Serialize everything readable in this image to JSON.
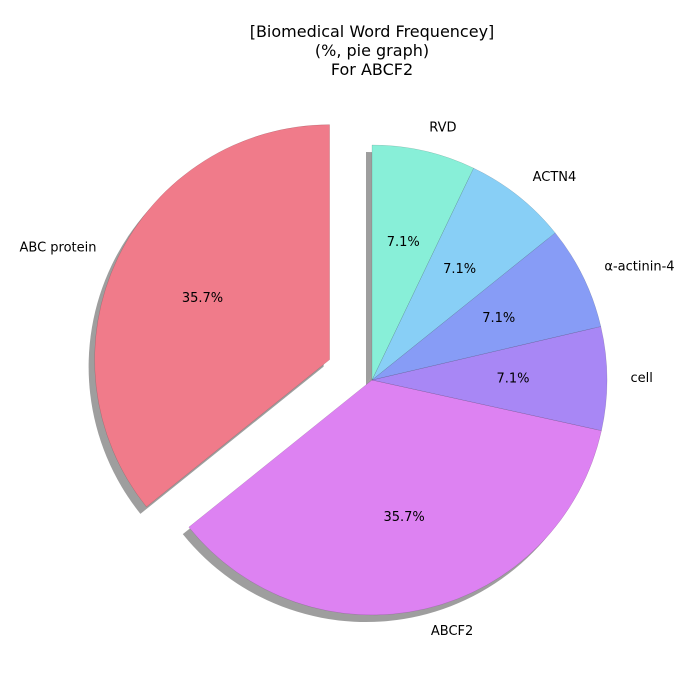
{
  "chart_data": {
    "type": "pie",
    "title_lines": [
      "[Biomedical Word Frequencey]",
      "(%, pie graph)",
      "For ABCF2"
    ],
    "slices": [
      {
        "label": "ABC protein",
        "value": 35.7,
        "pct_label": "35.7%",
        "color": "#f07b8a",
        "exploded": true
      },
      {
        "label": "ABCF2",
        "value": 35.7,
        "pct_label": "35.7%",
        "color": "#dd82f2",
        "exploded": false
      },
      {
        "label": "cell",
        "value": 7.1,
        "pct_label": "7.1%",
        "color": "#a887f5",
        "exploded": false
      },
      {
        "label": "α-actinin-4",
        "value": 7.1,
        "pct_label": "7.1%",
        "color": "#879cf6",
        "exploded": false
      },
      {
        "label": "ACTN4",
        "value": 7.1,
        "pct_label": "7.1%",
        "color": "#88cff6",
        "exploded": false
      },
      {
        "label": "RVD",
        "value": 7.1,
        "pct_label": "7.1%",
        "color": "#88efd8",
        "exploded": false
      }
    ],
    "start_angle_deg": 90,
    "direction": "counterclockwise",
    "shadow": true,
    "legend": "none"
  }
}
